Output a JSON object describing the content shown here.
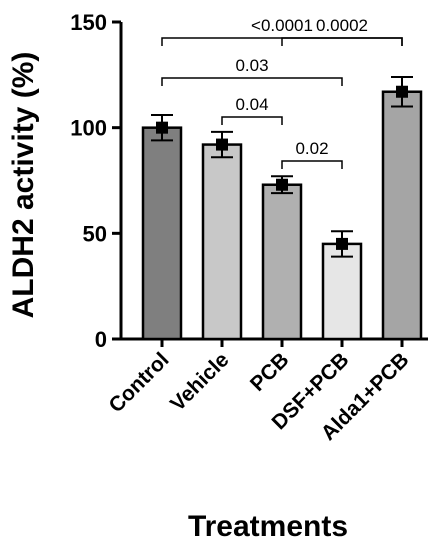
{
  "chart_data": {
    "type": "bar",
    "categories": [
      "Control",
      "Vehicle",
      "PCB",
      "DSF+PCB",
      "Alda1+PCB"
    ],
    "values": [
      100,
      92,
      73,
      45,
      117
    ],
    "errors": [
      6,
      6,
      4,
      6,
      7
    ],
    "bar_colors": [
      "#7f7f7f",
      "#c8c8c8",
      "#b0b0b0",
      "#e6e6e6",
      "#a5a5a5"
    ],
    "ylabel": "ALDH2 activity (%)",
    "xlabel": "Treatments",
    "ylim": [
      0,
      150
    ],
    "yticks": [
      0,
      50,
      100,
      150
    ],
    "grid": false,
    "legend": "none",
    "comparisons": [
      {
        "from": "Control",
        "to": "Alda1+PCB",
        "label": "<0.0001"
      },
      {
        "from": "PCB",
        "to": "Alda1+PCB",
        "label": "0.0002"
      },
      {
        "from": "Control",
        "to": "DSF+PCB",
        "label": "0.03"
      },
      {
        "from": "Vehicle",
        "to": "PCB",
        "label": "0.04"
      },
      {
        "from": "PCB",
        "to": "DSF+PCB",
        "label": "0.02"
      }
    ]
  }
}
